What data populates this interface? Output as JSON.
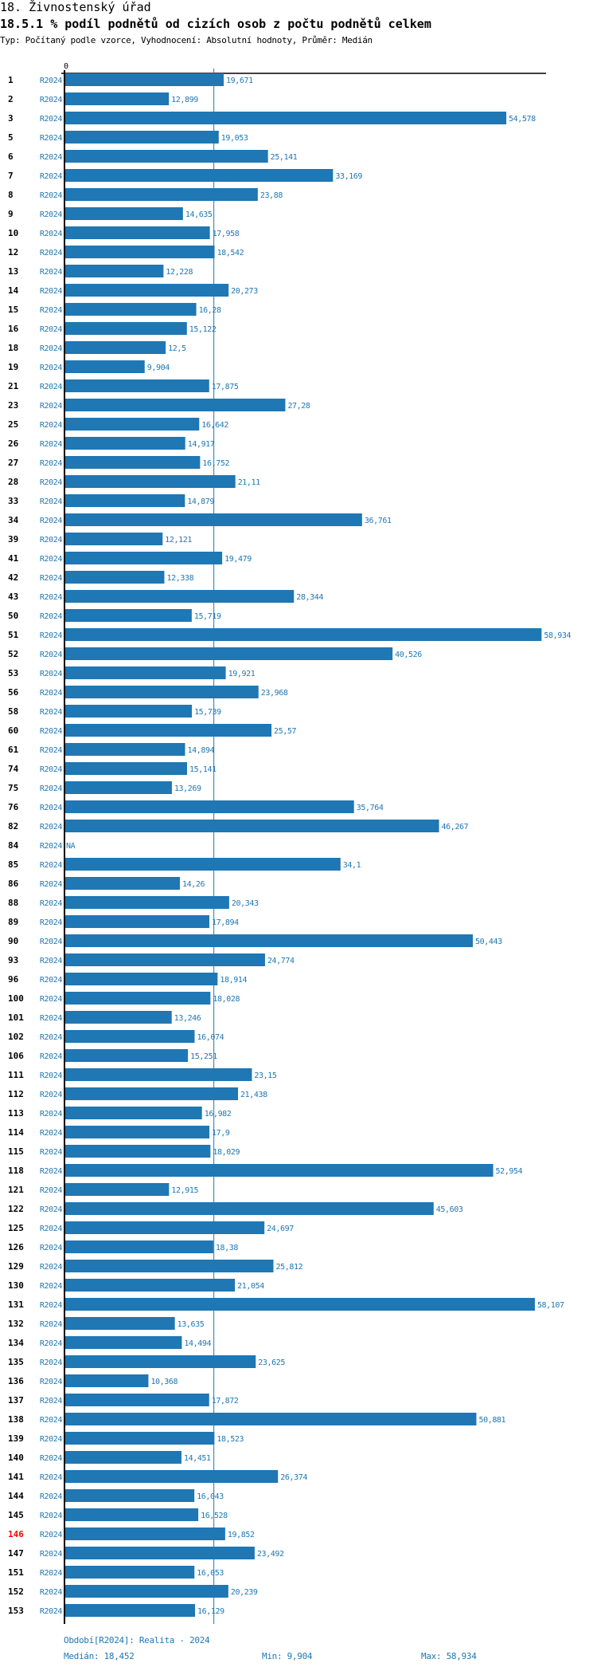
{
  "header": {
    "section_title": "18. Živnostenský úřad",
    "indicator_title": "18.5.1 % podíl podnětů od cizích osob z počtu podnětů celkem",
    "subtitle": "Typ: Počítaný podle vzorce, Vyhodnocení: Absolutní hodnoty, Průměr: Medián"
  },
  "colors": {
    "bar": "#1f77b4",
    "label_text": "#1f77b4",
    "highlight_row": "#ff0000",
    "axis": "#000000"
  },
  "chart_data": {
    "type": "bar",
    "orientation": "horizontal",
    "title": "18.5.1 % podíl podnětů od cizích osob z počtu podnětů celkem",
    "xlabel": "",
    "ylabel": "",
    "x_axis_tick_labels": [
      "0"
    ],
    "xlim": [
      0,
      58.934
    ],
    "series_label": "R2024",
    "reference_line": {
      "name": "Medián",
      "value": 18.452
    },
    "highlight_category": "146",
    "categories": [
      "1",
      "2",
      "3",
      "5",
      "6",
      "7",
      "8",
      "9",
      "10",
      "12",
      "13",
      "14",
      "15",
      "16",
      "18",
      "19",
      "21",
      "23",
      "25",
      "26",
      "27",
      "28",
      "33",
      "34",
      "39",
      "41",
      "42",
      "43",
      "50",
      "51",
      "52",
      "53",
      "56",
      "58",
      "60",
      "61",
      "74",
      "75",
      "76",
      "82",
      "84",
      "85",
      "86",
      "88",
      "89",
      "90",
      "93",
      "96",
      "100",
      "101",
      "102",
      "106",
      "111",
      "112",
      "113",
      "114",
      "115",
      "118",
      "121",
      "122",
      "125",
      "126",
      "129",
      "130",
      "131",
      "132",
      "134",
      "135",
      "136",
      "137",
      "138",
      "139",
      "140",
      "141",
      "144",
      "145",
      "146",
      "147",
      "151",
      "152",
      "153"
    ],
    "values": [
      19.671,
      12.899,
      54.578,
      19.053,
      25.141,
      33.169,
      23.88,
      14.635,
      17.958,
      18.542,
      12.228,
      20.273,
      16.28,
      15.122,
      12.5,
      9.904,
      17.875,
      27.28,
      16.642,
      14.917,
      16.752,
      21.11,
      14.879,
      36.761,
      12.121,
      19.479,
      12.338,
      28.344,
      15.719,
      58.934,
      40.526,
      19.921,
      23.968,
      15.739,
      25.57,
      14.894,
      15.141,
      13.269,
      35.764,
      46.267,
      null,
      34.1,
      14.26,
      20.343,
      17.894,
      50.443,
      24.774,
      18.914,
      18.028,
      13.246,
      16.074,
      15.251,
      23.15,
      21.438,
      16.982,
      17.9,
      18.029,
      52.954,
      12.915,
      45.603,
      24.697,
      18.38,
      25.812,
      21.054,
      58.107,
      13.635,
      14.494,
      23.625,
      10.368,
      17.872,
      50.881,
      18.523,
      14.451,
      26.374,
      16.043,
      16.528,
      19.852,
      23.492,
      16.053,
      20.239,
      16.129
    ],
    "value_labels": [
      "19,671",
      "12,899",
      "54,578",
      "19,053",
      "25,141",
      "33,169",
      "23,88",
      "14,635",
      "17,958",
      "18,542",
      "12,228",
      "20,273",
      "16,28",
      "15,122",
      "12,5",
      "9,904",
      "17,875",
      "27,28",
      "16,642",
      "14,917",
      "16,752",
      "21,11",
      "14,879",
      "36,761",
      "12,121",
      "19,479",
      "12,338",
      "28,344",
      "15,719",
      "58,934",
      "40,526",
      "19,921",
      "23,968",
      "15,739",
      "25,57",
      "14,894",
      "15,141",
      "13,269",
      "35,764",
      "46,267",
      "NA",
      "34,1",
      "14,26",
      "20,343",
      "17,894",
      "50,443",
      "24,774",
      "18,914",
      "18,028",
      "13,246",
      "16,074",
      "15,251",
      "23,15",
      "21,438",
      "16,982",
      "17,9",
      "18,029",
      "52,954",
      "12,915",
      "45,603",
      "24,697",
      "18,38",
      "25,812",
      "21,054",
      "58,107",
      "13,635",
      "14,494",
      "23,625",
      "10,368",
      "17,872",
      "50,881",
      "18,523",
      "14,451",
      "26,374",
      "16,043",
      "16,528",
      "19,852",
      "23,492",
      "16,053",
      "20,239",
      "16,129"
    ]
  },
  "footer": {
    "period": "Období[R2024]: Realita - 2024",
    "median": "Medián: 18,452",
    "min": "Min: 9,904",
    "max": "Max: 58,934"
  }
}
